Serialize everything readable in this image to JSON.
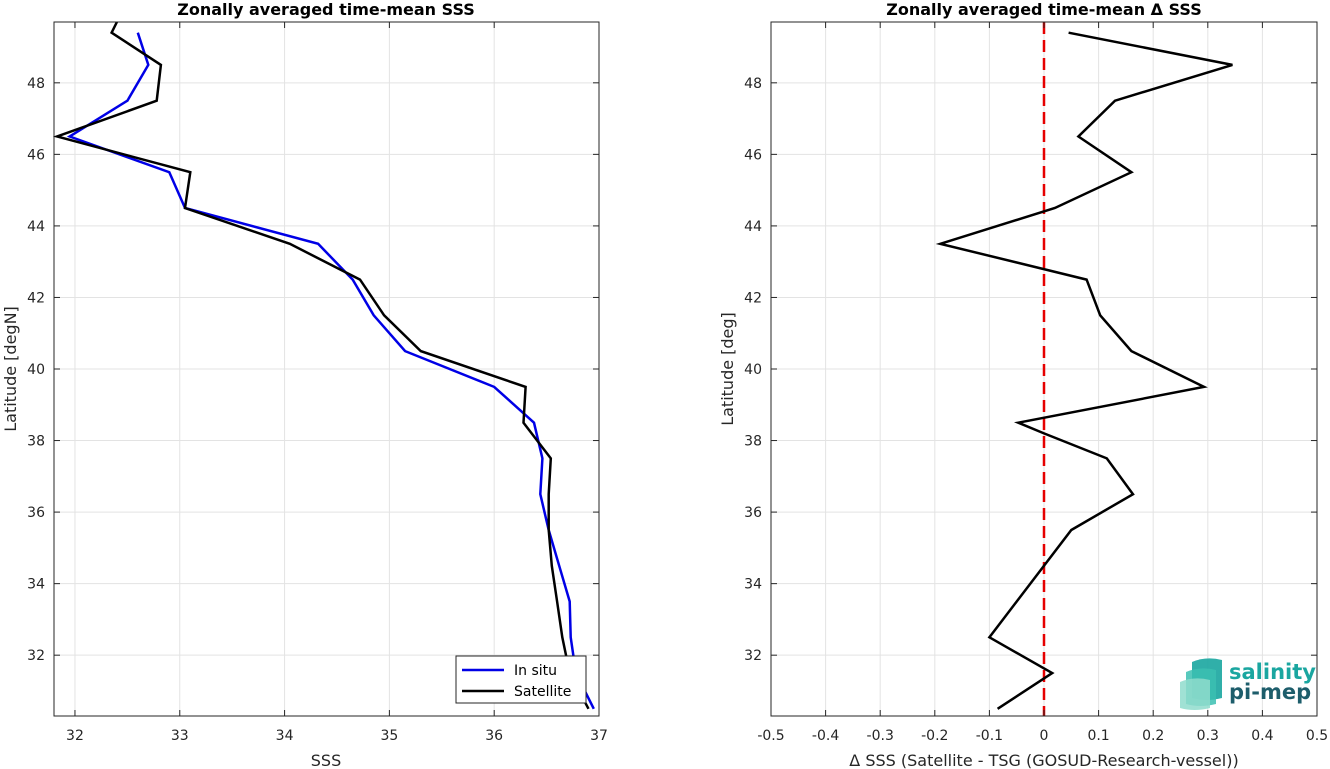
{
  "chart_data": [
    {
      "type": "line",
      "title": "Zonally averaged time-mean SSS",
      "xlabel": "SSS",
      "ylabel": "Latitude [degN]",
      "xlim": [
        31.8,
        37.0
      ],
      "ylim": [
        30.3,
        49.7
      ],
      "xticks": [
        32,
        33,
        34,
        35,
        36,
        37
      ],
      "yticks": [
        32,
        34,
        36,
        38,
        40,
        42,
        44,
        46,
        48
      ],
      "grid": true,
      "legend": "bottom-right",
      "series": [
        {
          "name": "In situ",
          "color": "#0000e6",
          "x": [
            36.95,
            36.78,
            36.73,
            36.72,
            36.62,
            36.52,
            36.44,
            36.46,
            36.38,
            36.0,
            35.15,
            34.85,
            34.65,
            34.32,
            33.05,
            32.9,
            31.95,
            32.5,
            32.7,
            32.6
          ],
          "y": [
            30.5,
            31.5,
            32.5,
            33.5,
            34.5,
            35.5,
            36.5,
            37.5,
            38.5,
            39.5,
            40.5,
            41.5,
            42.5,
            43.5,
            44.5,
            45.5,
            46.5,
            47.5,
            48.5,
            49.4
          ]
        },
        {
          "name": "Satellite",
          "color": "#000000",
          "x": [
            36.9,
            36.72,
            36.65,
            36.6,
            36.55,
            36.52,
            36.52,
            36.54,
            36.28,
            36.3,
            35.3,
            34.95,
            34.72,
            34.05,
            33.05,
            33.1,
            31.83,
            32.78,
            32.82,
            32.35,
            32.4
          ],
          "y": [
            30.5,
            31.5,
            32.5,
            33.5,
            34.5,
            35.5,
            36.5,
            37.5,
            38.5,
            39.5,
            40.5,
            41.5,
            42.5,
            43.5,
            44.5,
            45.5,
            46.5,
            47.5,
            48.5,
            49.4,
            49.7
          ]
        }
      ]
    },
    {
      "type": "line",
      "title": "Zonally averaged time-mean Δ SSS",
      "xlabel": "Δ SSS (Satellite - TSG (GOSUD-Research-vessel))",
      "ylabel": "Latitude [deg]",
      "xlim": [
        -0.5,
        0.5
      ],
      "ylim": [
        30.3,
        49.7
      ],
      "xticks": [
        -0.5,
        -0.4,
        -0.3,
        -0.2,
        -0.1,
        0,
        0.1,
        0.2,
        0.3,
        0.4,
        0.5
      ],
      "xticklabels": [
        "-0.5",
        "-0.4",
        "-0.3",
        "-0.2",
        "-0.1",
        "0",
        "0.1",
        "0.2",
        "0.3",
        "0.4",
        "0.5"
      ],
      "yticks": [
        32,
        34,
        36,
        38,
        40,
        42,
        44,
        46,
        48
      ],
      "grid": true,
      "reference_line": {
        "x": 0,
        "color": "#e60000",
        "style": "dashed"
      },
      "series": [
        {
          "color": "#000000",
          "x": [
            -0.085,
            0.015,
            -0.1,
            -0.05,
            0.05,
            0.163,
            0.115,
            0.0,
            -0.047,
            0.293,
            0.16,
            0.103,
            0.078,
            -0.19,
            0.02,
            0.16,
            0.063,
            0.13,
            0.345,
            0.045
          ],
          "y": [
            30.5,
            31.5,
            32.5,
            33.5,
            35.5,
            36.5,
            37.5,
            38.2,
            38.5,
            39.5,
            40.5,
            41.5,
            42.5,
            43.5,
            44.5,
            45.5,
            46.5,
            47.5,
            48.5,
            49.4
          ]
        }
      ]
    }
  ],
  "logo": {
    "line1": "salinity",
    "line2": "pi-mep"
  }
}
